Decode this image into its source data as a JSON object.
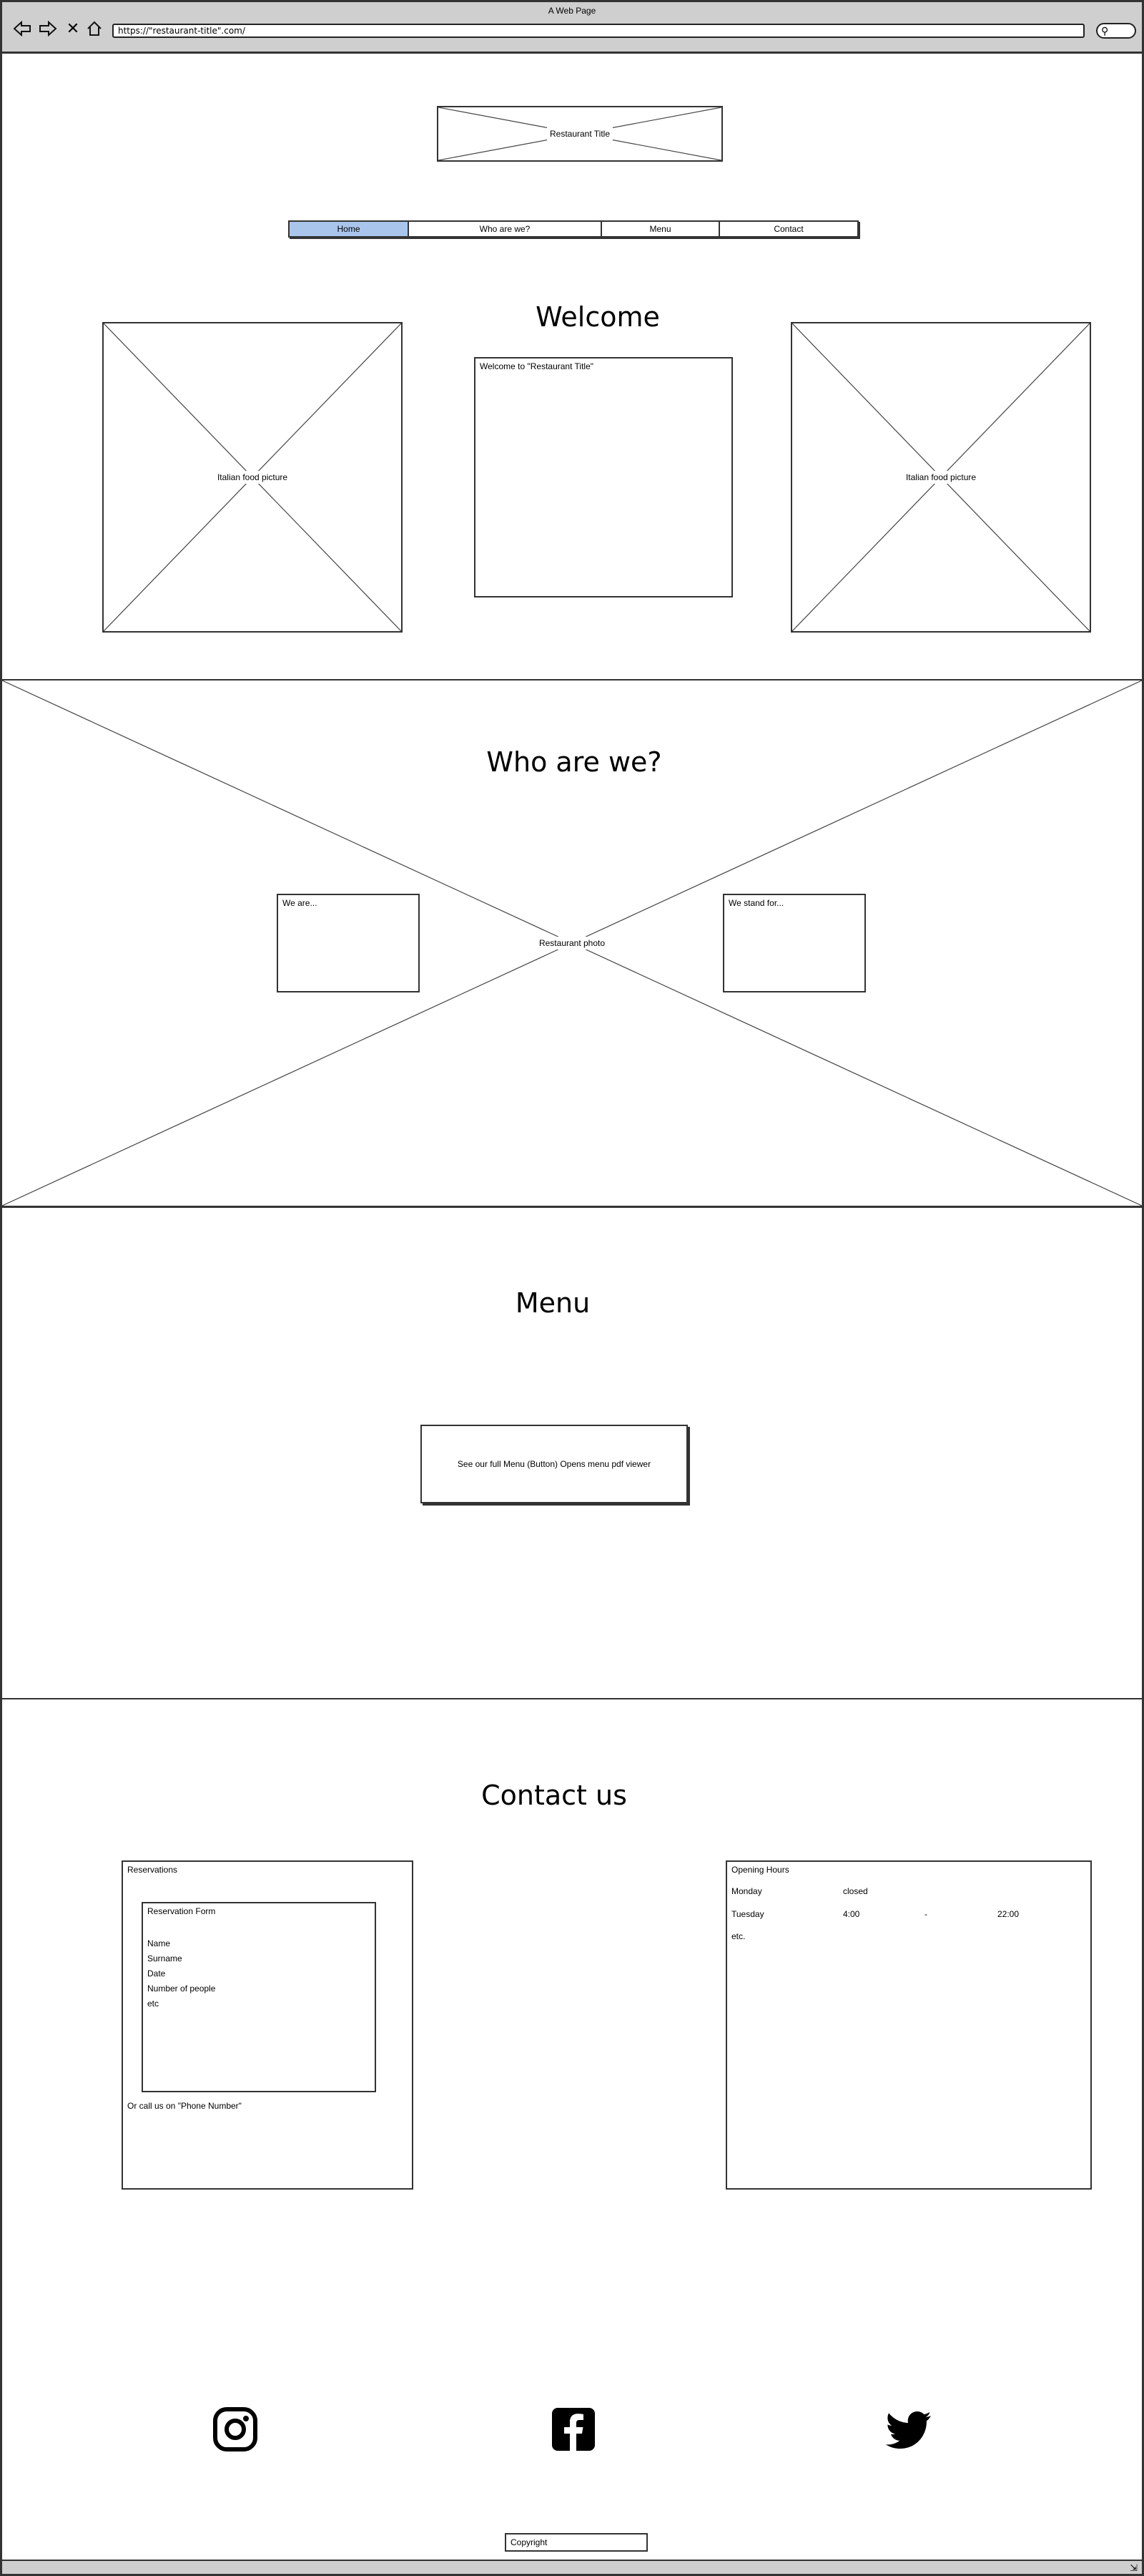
{
  "window": {
    "title": "A Web Page",
    "url": "https://\"restaurant-title\".com/"
  },
  "header": {
    "logo_label": "Restaurant Title",
    "nav": [
      {
        "label": "Home",
        "active": true
      },
      {
        "label": "Who are we?",
        "active": false
      },
      {
        "label": "Menu",
        "active": false
      },
      {
        "label": "Contact",
        "active": false
      }
    ]
  },
  "welcome": {
    "heading": "Welcome",
    "left_image_label": "Italian food picture",
    "right_image_label": "Italian food picture",
    "text": "Welcome to \"Restaurant Title\""
  },
  "who": {
    "heading": "Who are we?",
    "background_label": "Restaurant photo",
    "we_are": "We are...",
    "we_stand_for": "We stand for..."
  },
  "menu": {
    "heading": "Menu",
    "button_label": "See our full Menu (Button) Opens menu pdf viewer"
  },
  "contact": {
    "heading": "Contact us",
    "reservations": {
      "title": "Reservations",
      "form_title": "Reservation Form",
      "fields": [
        "Name",
        "Surname",
        "Date",
        "Number of people",
        "etc"
      ],
      "call_text": "Or call us on \"Phone Number\""
    },
    "hours": {
      "title": "Opening Hours",
      "rows": [
        {
          "day": "Monday",
          "open": "closed",
          "sep": "",
          "close": ""
        },
        {
          "day": "Tuesday",
          "open": "4:00",
          "sep": "-",
          "close": "22:00"
        },
        {
          "day": "etc.",
          "open": "",
          "sep": "",
          "close": ""
        }
      ]
    }
  },
  "footer": {
    "social": [
      "instagram-icon",
      "facebook-icon",
      "twitter-icon"
    ],
    "copyright": "Copyright"
  }
}
